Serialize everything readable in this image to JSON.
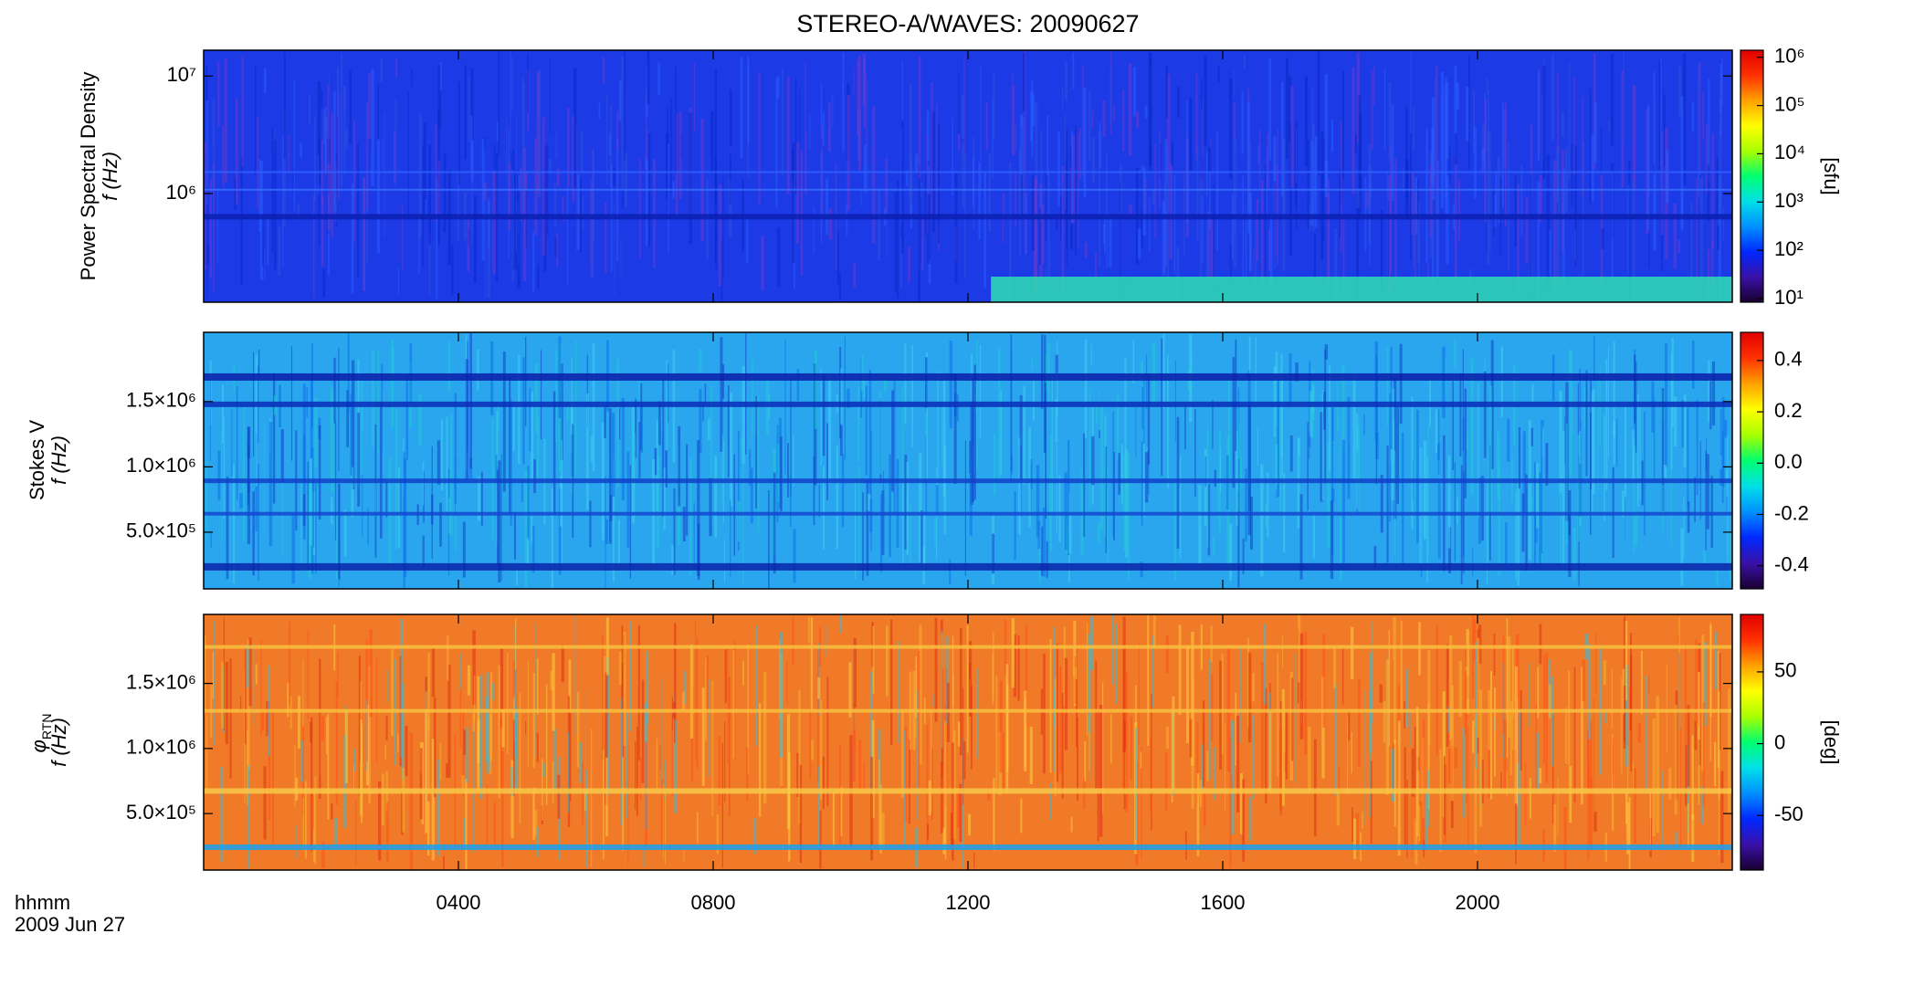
{
  "chart_data": [
    {
      "type": "heatmap",
      "title": "STEREO-A/WAVES: 20090627",
      "ylabel": [
        "Power Spectral Density",
        "f (Hz)"
      ],
      "ylog": true,
      "ylim": [
        119000,
        16600000
      ],
      "yticks": [
        {
          "value": 1000000,
          "label": "10⁶"
        },
        {
          "value": 10000000,
          "label": "10⁷"
        }
      ],
      "colorbar_label": "[sfu]",
      "clog": true,
      "clim": [
        8.4,
        1400000
      ],
      "cticks": [
        {
          "value": 10,
          "label": "10¹"
        },
        {
          "value": 100,
          "label": "10²"
        },
        {
          "value": 1000,
          "label": "10³"
        },
        {
          "value": 10000,
          "label": "10⁴"
        },
        {
          "value": 100000,
          "label": "10⁵"
        },
        {
          "value": 1000000,
          "label": "10⁶"
        }
      ],
      "colormap": [
        "#1a0030",
        "#3a10a8",
        "#0028ff",
        "#0090ff",
        "#00e0e8",
        "#00ff70",
        "#a8ff00",
        "#ffff00",
        "#ffa000",
        "#ff3000",
        "#e00000"
      ]
    },
    {
      "type": "heatmap",
      "ylabel": [
        "Stokes V",
        "f (Hz)"
      ],
      "ylog": false,
      "ylim": [
        66000,
        2030000
      ],
      "yticks": [
        {
          "value": 500000,
          "label": "5.0×10⁵"
        },
        {
          "value": 1000000,
          "label": "1.0×10⁶"
        },
        {
          "value": 1500000,
          "label": "1.5×10⁶"
        }
      ],
      "clog": false,
      "clim": [
        -0.49,
        0.51
      ],
      "cticks": [
        -0.4,
        -0.2,
        {
          "value": 0,
          "label": "0.0"
        },
        0.2,
        0.4
      ],
      "colormap": [
        "#1a0030",
        "#3a10a8",
        "#0028ff",
        "#0090ff",
        "#00e0e8",
        "#00ff70",
        "#a8ff00",
        "#ffff00",
        "#ffa000",
        "#ff3000",
        "#e00000"
      ]
    },
    {
      "type": "heatmap",
      "ylabel": [
        "φ",
        "RTN",
        "f (Hz)"
      ],
      "ylog": false,
      "ylim": [
        66000,
        2030000
      ],
      "yticks": [
        {
          "value": 500000,
          "label": "5.0×10⁵"
        },
        {
          "value": 1000000,
          "label": "1.0×10⁶"
        },
        {
          "value": 1500000,
          "label": "1.5×10⁶"
        }
      ],
      "colorbar_label": "[deg]",
      "clog": false,
      "clim": [
        -88,
        90
      ],
      "cticks": [
        -50,
        0,
        50
      ],
      "colormap": [
        "#1a0030",
        "#3a10a8",
        "#0028ff",
        "#0090ff",
        "#00e0e8",
        "#00ff70",
        "#a8ff00",
        "#ffff00",
        "#ffa000",
        "#ff3000",
        "#e00000"
      ],
      "xlabel": [
        "hhmm",
        "2009 Jun 27"
      ],
      "xlim": [
        0,
        24
      ],
      "xticks": [
        {
          "value": 4,
          "label": "0400"
        },
        {
          "value": 8,
          "label": "0800"
        },
        {
          "value": 12,
          "label": "1200"
        },
        {
          "value": 16,
          "label": "1600"
        },
        {
          "value": 20,
          "label": "2000"
        }
      ]
    }
  ]
}
